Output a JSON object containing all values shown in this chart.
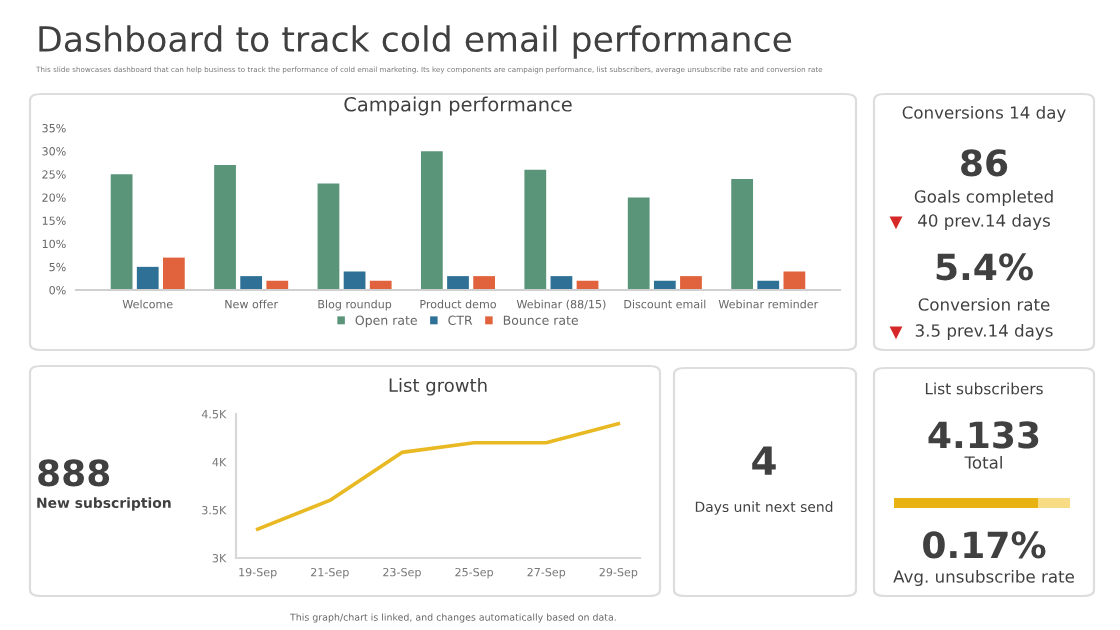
{
  "chart_data": [
    {
      "type": "other",
      "title": "Dashboard to track cold email performance",
      "subtitle": "This slide showcases dashboard that can help business to track the performance of cold email marketing. Its key components are campaign performance, list subscribers, average unsubscribe rate and conversion rate",
      "annotations": [
        "This graph/chart is linked, and changes automatically based on data."
      ]
    },
    {
      "type": "bar",
      "title": "Campaign performance",
      "categories": [
        "Welcome",
        "New offer",
        "Blog roundup",
        "Product demo",
        "Webinar (88/15)",
        "Discount email",
        "Webinar reminder"
      ],
      "series": [
        {
          "name": "Open rate",
          "color": "#5a957a",
          "values": [
            25,
            27,
            23,
            30,
            26,
            20,
            24
          ]
        },
        {
          "name": "CTR",
          "color": "#2f7196",
          "values": [
            5,
            3,
            4,
            3,
            3,
            2,
            2
          ]
        },
        {
          "name": "Bounce rate",
          "color": "#e0633e",
          "values": [
            7,
            2,
            2,
            3,
            2,
            3,
            4
          ]
        }
      ],
      "ylim": [
        0,
        35
      ],
      "yticks": [
        {
          "value": 0,
          "label": "0%"
        },
        {
          "value": 5,
          "label": "5%"
        },
        {
          "value": 10,
          "label": "10%"
        },
        {
          "value": 15,
          "label": "15%"
        },
        {
          "value": 20,
          "label": "20%"
        },
        {
          "value": 25,
          "label": "25%"
        },
        {
          "value": 30,
          "label": "30%"
        },
        {
          "value": 35,
          "label": "35%"
        }
      ],
      "legend": "bottom",
      "grid": false
    },
    {
      "type": "other",
      "annotations": [
        "Conversions 14 day",
        "86",
        "Goals completed",
        "40 prev.14 days",
        "5.4%",
        "Conversion rate",
        "3.5 prev.14 days"
      ]
    },
    {
      "type": "line",
      "title": "List growth",
      "categories": [
        "19-Sep",
        "21-Sep",
        "23-Sep",
        "25-Sep",
        "27-Sep",
        "29-Sep"
      ],
      "series": [
        {
          "color": "#e8b923",
          "values": [
            3300,
            3600,
            4100,
            4200,
            4200,
            4400
          ]
        }
      ],
      "ylim": [
        3000,
        4500
      ],
      "yticks": [
        {
          "value": 3000,
          "label": "3K"
        },
        {
          "value": 3500,
          "label": "3.5K"
        },
        {
          "value": 4000,
          "label": "4K"
        },
        {
          "value": 4500,
          "label": "4.5K"
        }
      ],
      "grid": false,
      "marker": "none",
      "line_style": "solid",
      "annotations": [
        "888",
        "New subscription"
      ]
    },
    {
      "type": "other",
      "annotations": [
        "4",
        "Days unit next send"
      ]
    },
    {
      "type": "other",
      "title": "List subscribers",
      "annotations": [
        "4.133",
        "Total",
        "0.17%",
        "Avg. unsubscribe rate"
      ]
    }
  ]
}
